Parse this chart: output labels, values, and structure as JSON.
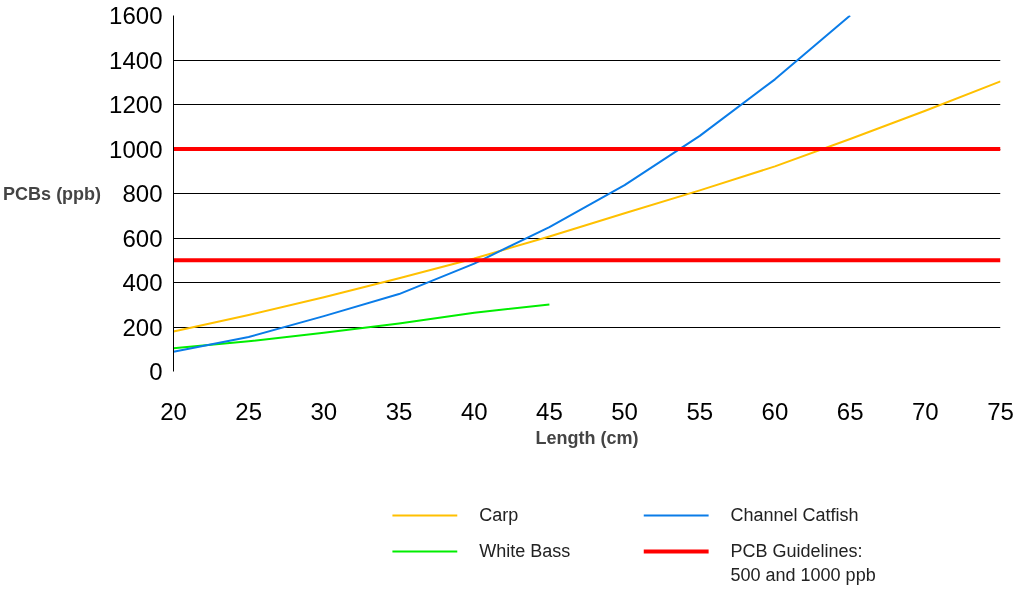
{
  "chart_data": {
    "type": "line",
    "xlabel": "Length (cm)",
    "ylabel": "PCBs (ppb)",
    "xlim": [
      20,
      75
    ],
    "xticks": [
      20,
      25,
      30,
      35,
      40,
      45,
      50,
      55,
      60,
      65,
      70,
      75
    ],
    "ylim": [
      0,
      1600
    ],
    "yticks": [
      0,
      200,
      400,
      600,
      800,
      1000,
      1200,
      1400,
      1600
    ],
    "grid": "y",
    "legend": "bottom",
    "series": [
      {
        "name": "Carp",
        "color": "#ffc000",
        "x": [
          20,
          25,
          30,
          35,
          40,
          45,
          50,
          55,
          60,
          65,
          70,
          75
        ],
        "values": [
          180,
          254,
          334,
          419,
          508,
          607,
          711,
          814,
          922,
          1045,
          1172,
          1304
        ]
      },
      {
        "name": "White Bass",
        "color": "#00ee00",
        "x": [
          20,
          25,
          30,
          35,
          40,
          45
        ],
        "values": [
          104,
          136,
          174,
          216,
          264,
          301
        ]
      },
      {
        "name": "Channel Catfish",
        "color": "#0a7ce8",
        "x": [
          20,
          25,
          30,
          35,
          40,
          45,
          50,
          55,
          60,
          65
        ],
        "values": [
          89,
          155,
          249,
          348,
          485,
          649,
          838,
          1059,
          1313,
          1600
        ]
      }
    ],
    "ref_lines": [
      {
        "axis": "y",
        "value": 1000,
        "label": "PCB Guidelines:\n500 and 1000 ppb",
        "color": "#ff0000"
      },
      {
        "axis": "y",
        "value": 500,
        "color": "#ff0000"
      }
    ]
  }
}
